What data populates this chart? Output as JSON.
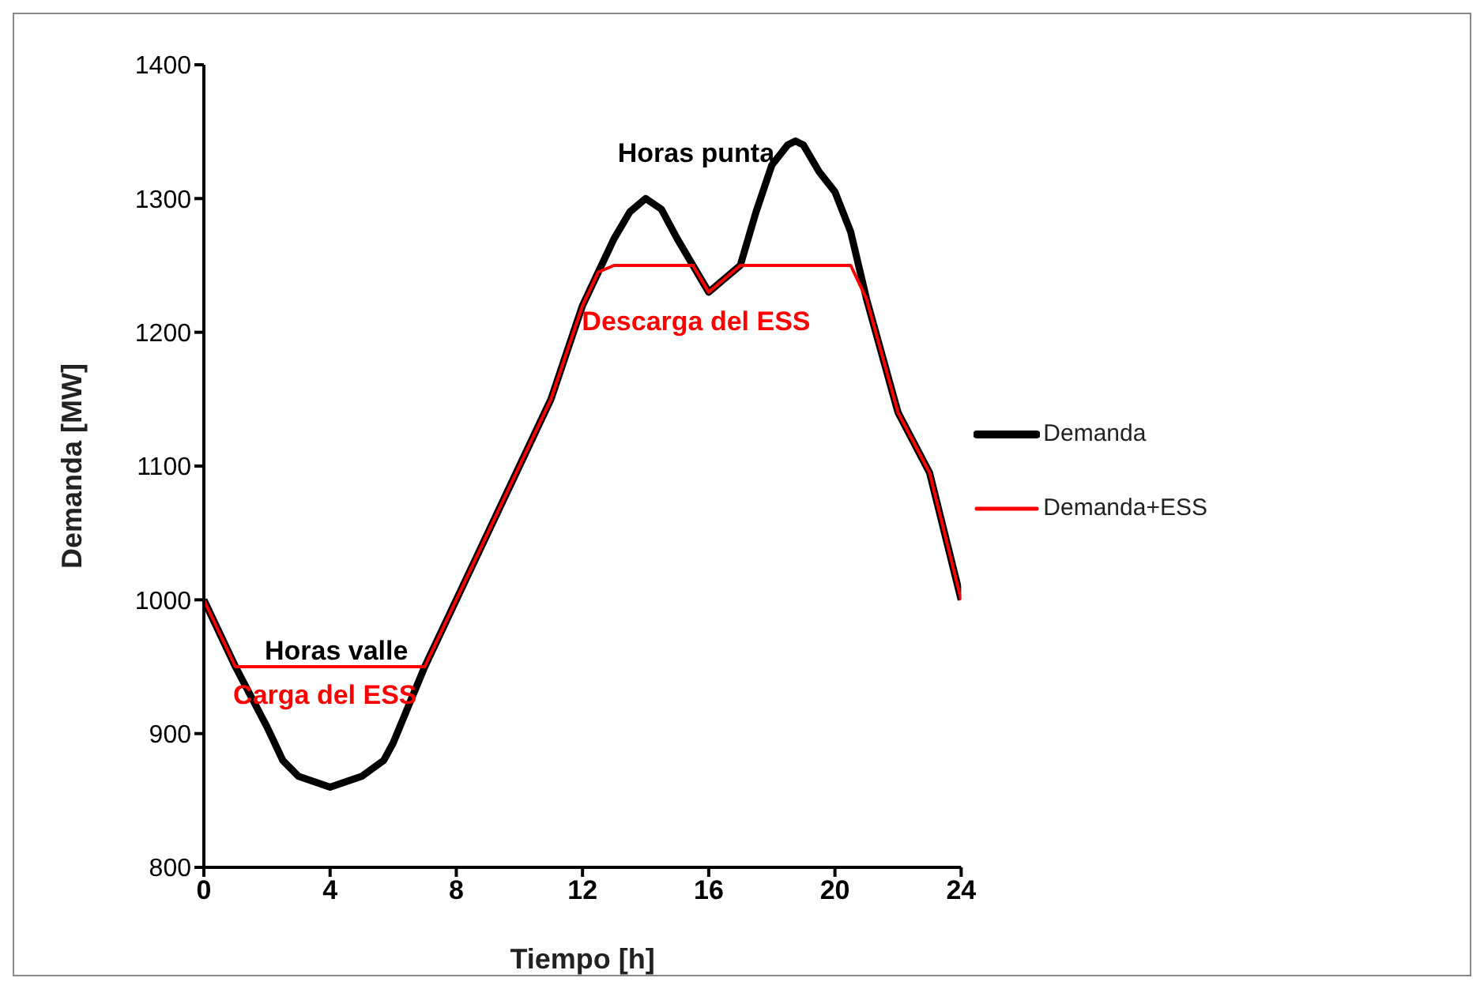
{
  "chart_data": {
    "type": "line",
    "xlabel": "Tiempo [h]",
    "ylabel": "Demanda [MW]",
    "xlim": [
      0,
      24
    ],
    "xticks": [
      0,
      4,
      8,
      12,
      16,
      20,
      24
    ],
    "ylim": [
      800,
      1400
    ],
    "yticks": [
      800,
      900,
      1000,
      1100,
      1200,
      1300,
      1400
    ],
    "grid": false,
    "legend": "right",
    "marker": "none",
    "line_style": "solid",
    "series": [
      {
        "name": "Demanda",
        "color": "#000000",
        "x": [
          0,
          1,
          2,
          2.5,
          3,
          4,
          5,
          5.7,
          6,
          7,
          8,
          9,
          10,
          11,
          12,
          12.5,
          13,
          13.5,
          14,
          14.5,
          15,
          15.5,
          16,
          16.5,
          17,
          17.5,
          18,
          18.5,
          18.75,
          19,
          19.5,
          20,
          20.5,
          21,
          22,
          23,
          24
        ],
        "values": [
          1000,
          950,
          905,
          880,
          868,
          860,
          868,
          880,
          893,
          950,
          1000,
          1050,
          1100,
          1150,
          1220,
          1245,
          1270,
          1290,
          1300,
          1292,
          1270,
          1250,
          1230,
          1240,
          1250,
          1290,
          1325,
          1340,
          1343,
          1340,
          1320,
          1305,
          1275,
          1225,
          1140,
          1095,
          1000
        ]
      },
      {
        "name": "Demanda+ESS",
        "color": "#ff0000",
        "x": [
          0,
          1,
          7,
          8,
          9,
          10,
          11,
          12,
          12.5,
          13,
          15.5,
          16,
          16.5,
          17,
          20.5,
          21,
          22,
          23,
          24
        ],
        "values": [
          1000,
          950,
          950,
          1000,
          1050,
          1100,
          1150,
          1220,
          1245,
          1250,
          1250,
          1230,
          1240,
          1250,
          1250,
          1225,
          1140,
          1095,
          1000
        ]
      }
    ],
    "annotations": [
      "Horas punta",
      "Descarga del ESS",
      "Horas valle",
      "Carga del ESS"
    ]
  }
}
